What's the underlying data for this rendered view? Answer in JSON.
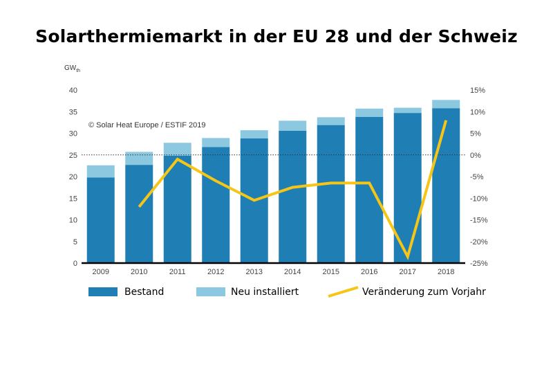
{
  "chart_data": {
    "type": "bar+line",
    "title": "Solarthermiemarkt in der EU 28 und der Schweiz",
    "ylabel_left": "GW",
    "ylabel_left_sub": "th",
    "copyright": "© Solar Heat Europe / ESTIF 2019",
    "categories": [
      "2009",
      "2010",
      "2011",
      "2012",
      "2013",
      "2014",
      "2015",
      "2016",
      "2017",
      "2018"
    ],
    "series": [
      {
        "name": "Bestand",
        "type": "stacked-bar",
        "color": "#1f7fb4",
        "values": [
          19.8,
          22.7,
          24.8,
          26.8,
          28.8,
          30.6,
          31.9,
          33.8,
          34.7,
          35.8
        ]
      },
      {
        "name": "Neu installiert",
        "type": "stacked-bar",
        "color": "#8cc8e0",
        "values": [
          2.8,
          3.0,
          3.0,
          2.1,
          1.9,
          2.3,
          1.8,
          1.9,
          1.2,
          1.9
        ]
      },
      {
        "name": "Veränderung zum Vorjahr",
        "type": "line",
        "axis": "right",
        "color": "#f5c518",
        "values": [
          null,
          -12.0,
          -1.0,
          -6.0,
          -10.5,
          -7.5,
          -6.5,
          -6.5,
          -23.5,
          8.0
        ]
      }
    ],
    "ylim_left": [
      0,
      40
    ],
    "yticks_left": [
      "0",
      "5",
      "10",
      "15",
      "20",
      "25",
      "30",
      "35",
      "40"
    ],
    "ylim_right": [
      -25,
      15
    ],
    "yticks_right": [
      "-25%",
      "-20%",
      "-15%",
      "-10%",
      "-5%",
      "0%",
      "5%",
      "10%",
      "15%"
    ],
    "zero_reference_line": "dotted",
    "legend": [
      "Bestand",
      "Neu installiert",
      "Veränderung zum Vorjahr"
    ],
    "legend_position": "bottom"
  }
}
